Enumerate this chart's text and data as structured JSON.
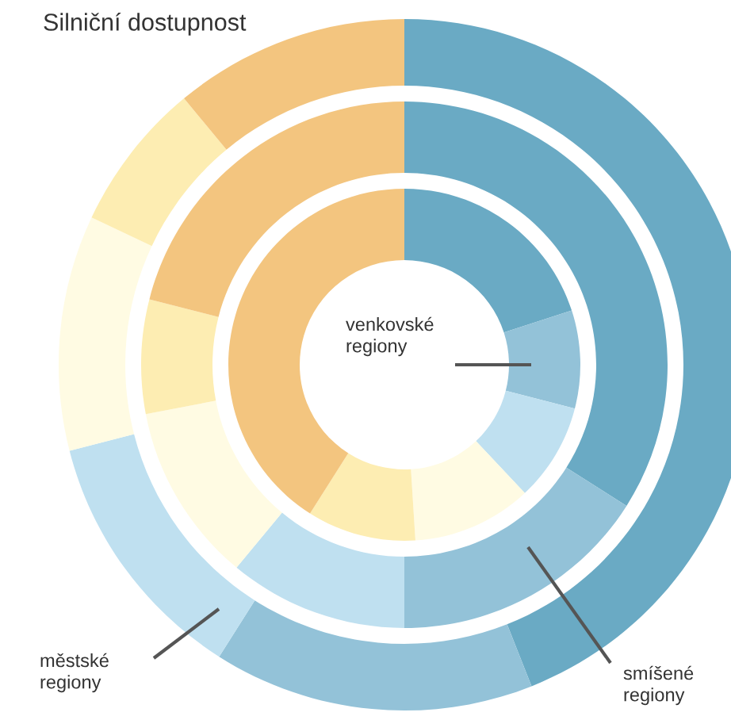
{
  "chart_data": {
    "type": "donut",
    "title": "Silniční dostupnost",
    "categories": [
      null,
      null,
      null,
      null,
      null,
      null
    ],
    "series": [
      {
        "name": "městské regiony",
        "values": [
          44,
          15,
          12,
          11,
          7,
          11
        ],
        "colors": [
          "#6aaac4",
          "#93c2d8",
          "#bfe0f0",
          "#fffbe3",
          "#fdedb2",
          "#f3c57f"
        ]
      },
      {
        "name": "smíšené regiony",
        "values": [
          34,
          16,
          11,
          11,
          7,
          21
        ],
        "colors": [
          "#6aaac4",
          "#93c2d8",
          "#bfe0f0",
          "#fffbe3",
          "#fdedb2",
          "#f3c57f"
        ]
      },
      {
        "name": "venkovské regiony",
        "values": [
          20,
          9,
          9,
          11,
          10,
          41
        ],
        "colors": [
          "#6aaac4",
          "#93c2d8",
          "#bfe0f0",
          "#fffbe3",
          "#fdedb2",
          "#f3c57f"
        ]
      }
    ]
  }
}
